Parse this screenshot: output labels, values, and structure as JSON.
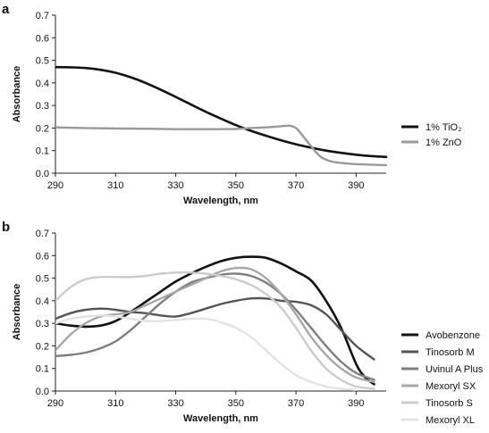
{
  "chart_data": [
    {
      "type": "line",
      "panel_label": "a",
      "xlabel": "Wavelength, nm",
      "ylabel": "Absorbance",
      "xlim": [
        290,
        400
      ],
      "ylim": [
        0,
        0.7
      ],
      "x_ticks": [
        290,
        310,
        330,
        350,
        370,
        390
      ],
      "y_ticks": [
        0,
        0.1,
        0.2,
        0.3,
        0.4,
        0.5,
        0.6,
        0.7
      ],
      "y_tick_labels": [
        "0.0",
        "0.1",
        "0.2",
        "0.3",
        "0.4",
        "0.5",
        "0.6",
        "0.7"
      ],
      "legend_position": "right",
      "series": [
        {
          "name": "1% TiO₂",
          "color": "#111111",
          "width": 2.6,
          "x": [
            290,
            295,
            300,
            305,
            310,
            315,
            320,
            325,
            330,
            335,
            340,
            345,
            350,
            355,
            360,
            365,
            370,
            375,
            380,
            385,
            390,
            395,
            400
          ],
          "y": [
            0.47,
            0.469,
            0.466,
            0.458,
            0.445,
            0.425,
            0.4,
            0.37,
            0.338,
            0.305,
            0.272,
            0.242,
            0.213,
            0.188,
            0.166,
            0.146,
            0.128,
            0.113,
            0.1,
            0.09,
            0.082,
            0.076,
            0.072
          ]
        },
        {
          "name": "1% ZnO",
          "color": "#999999",
          "width": 2.4,
          "x": [
            290,
            300,
            310,
            320,
            330,
            340,
            350,
            355,
            360,
            365,
            368,
            370,
            372,
            375,
            378,
            381,
            384,
            388,
            392,
            396,
            400
          ],
          "y": [
            0.203,
            0.2,
            0.198,
            0.197,
            0.195,
            0.195,
            0.196,
            0.2,
            0.203,
            0.208,
            0.21,
            0.2,
            0.17,
            0.12,
            0.075,
            0.055,
            0.047,
            0.042,
            0.039,
            0.037,
            0.036
          ]
        }
      ]
    },
    {
      "type": "line",
      "panel_label": "b",
      "xlabel": "Wavelength, nm",
      "ylabel": "Absorbance",
      "xlim": [
        290,
        400
      ],
      "ylim": [
        0,
        0.7
      ],
      "x_ticks": [
        290,
        310,
        330,
        350,
        370,
        390
      ],
      "y_ticks": [
        0,
        0.1,
        0.2,
        0.3,
        0.4,
        0.5,
        0.6,
        0.7
      ],
      "y_tick_labels": [
        "0.0",
        "0.1",
        "0.2",
        "0.3",
        "0.4",
        "0.5",
        "0.6",
        "0.7"
      ],
      "legend_position": "right",
      "series": [
        {
          "name": "Avobenzone",
          "color": "#111111",
          "width": 2.6,
          "x": [
            290,
            295,
            300,
            305,
            310,
            315,
            320,
            325,
            330,
            335,
            340,
            345,
            350,
            355,
            360,
            365,
            370,
            375,
            380,
            385,
            390,
            393,
            396
          ],
          "y": [
            0.3,
            0.29,
            0.285,
            0.29,
            0.31,
            0.35,
            0.395,
            0.44,
            0.485,
            0.52,
            0.55,
            0.575,
            0.59,
            0.595,
            0.59,
            0.565,
            0.53,
            0.49,
            0.4,
            0.28,
            0.12,
            0.06,
            0.03
          ]
        },
        {
          "name": "Tinosorb M",
          "color": "#555555",
          "width": 2.4,
          "x": [
            290,
            295,
            300,
            305,
            310,
            315,
            320,
            325,
            330,
            335,
            340,
            345,
            350,
            355,
            360,
            365,
            370,
            375,
            380,
            385,
            390,
            396
          ],
          "y": [
            0.32,
            0.345,
            0.36,
            0.365,
            0.36,
            0.35,
            0.345,
            0.335,
            0.33,
            0.345,
            0.365,
            0.385,
            0.4,
            0.41,
            0.41,
            0.4,
            0.395,
            0.38,
            0.34,
            0.27,
            0.2,
            0.14
          ]
        },
        {
          "name": "Uvinul A Plus",
          "color": "#7f7f7f",
          "width": 2.4,
          "x": [
            290,
            295,
            300,
            305,
            310,
            315,
            320,
            325,
            330,
            335,
            340,
            345,
            350,
            355,
            360,
            365,
            370,
            375,
            380,
            385,
            390,
            396
          ],
          "y": [
            0.155,
            0.16,
            0.17,
            0.19,
            0.22,
            0.27,
            0.33,
            0.39,
            0.44,
            0.48,
            0.5,
            0.515,
            0.52,
            0.51,
            0.48,
            0.43,
            0.36,
            0.28,
            0.2,
            0.13,
            0.08,
            0.05
          ]
        },
        {
          "name": "Mexoryl SX",
          "color": "#a8a8a8",
          "width": 2.4,
          "x": [
            290,
            295,
            300,
            305,
            310,
            315,
            320,
            325,
            330,
            335,
            340,
            345,
            350,
            355,
            360,
            365,
            370,
            375,
            380,
            385,
            390,
            396
          ],
          "y": [
            0.18,
            0.25,
            0.3,
            0.33,
            0.34,
            0.35,
            0.38,
            0.41,
            0.44,
            0.47,
            0.5,
            0.53,
            0.545,
            0.54,
            0.5,
            0.43,
            0.34,
            0.24,
            0.16,
            0.1,
            0.06,
            0.04
          ]
        },
        {
          "name": "Tinosorb S",
          "color": "#cccccc",
          "width": 2.4,
          "x": [
            290,
            295,
            300,
            305,
            310,
            315,
            320,
            325,
            330,
            335,
            340,
            345,
            350,
            355,
            360,
            365,
            370,
            375,
            380,
            385,
            390,
            396
          ],
          "y": [
            0.4,
            0.46,
            0.495,
            0.505,
            0.505,
            0.505,
            0.51,
            0.52,
            0.525,
            0.525,
            0.52,
            0.51,
            0.495,
            0.47,
            0.43,
            0.37,
            0.28,
            0.18,
            0.1,
            0.05,
            0.02,
            0.01
          ]
        },
        {
          "name": "Mexoryl XL",
          "color": "#e3e3e3",
          "width": 2.4,
          "x": [
            290,
            295,
            300,
            305,
            310,
            315,
            320,
            325,
            330,
            335,
            340,
            345,
            350,
            355,
            360,
            365,
            370,
            375,
            380,
            385,
            390
          ],
          "y": [
            0.3,
            0.32,
            0.33,
            0.335,
            0.33,
            0.32,
            0.31,
            0.31,
            0.315,
            0.32,
            0.32,
            0.305,
            0.28,
            0.24,
            0.18,
            0.12,
            0.07,
            0.04,
            0.02,
            0.01,
            0.005
          ]
        }
      ]
    }
  ]
}
